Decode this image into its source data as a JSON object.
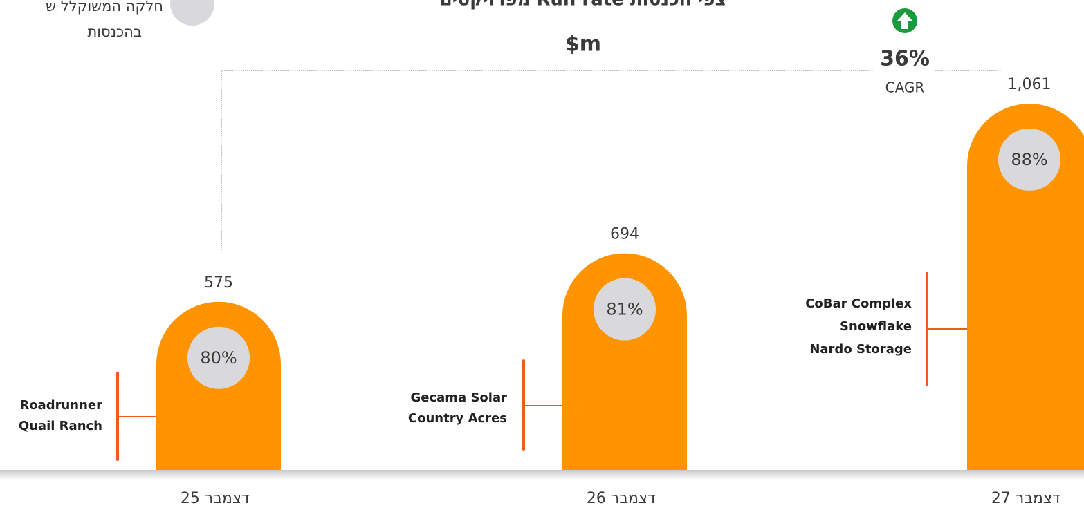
{
  "chart_data": {
    "type": "bar",
    "title": "צפי הכנסות Run rate מפרויקטים",
    "subtitle": "$m",
    "categories": [
      "דצמבר 25",
      "דצמבר 26",
      "דצמבר 27"
    ],
    "values": [
      575,
      694,
      1061
    ],
    "value_labels": [
      "575",
      "694",
      "1,061"
    ],
    "color": "#ff9400",
    "ylim": [
      163,
      1315
    ],
    "shares": [
      80,
      81,
      88
    ],
    "share_labels": [
      "80%",
      "81%",
      "88%"
    ],
    "share_color": "#d9d9dc",
    "projects": [
      [
        "Roadrunner",
        "Quail Ranch"
      ],
      [
        "Gecama Solar",
        "Country Acres"
      ],
      [
        "CoBar Complex",
        "Snowflake",
        "Nardo Storage"
      ]
    ],
    "cagr": {
      "value": 36,
      "label": "36%",
      "text": "CAGR"
    },
    "legend": [
      "חלקה המשוקלל ש",
      "בהכנסות"
    ]
  }
}
